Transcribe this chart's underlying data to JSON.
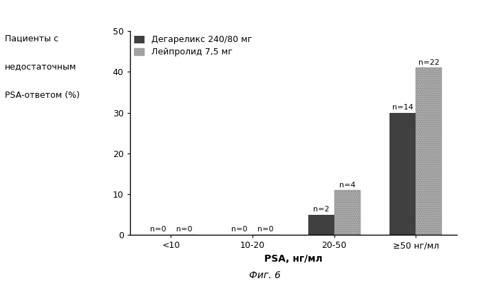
{
  "categories": [
    "<10",
    "10-20",
    "20-50",
    "≥50 нг/мл"
  ],
  "degarelix_values": [
    0,
    0,
    5,
    30
  ],
  "leuprolide_values": [
    0,
    0,
    11,
    41
  ],
  "degarelix_labels": [
    "n=0",
    "n=0",
    "n=2",
    "n=14"
  ],
  "leuprolide_labels": [
    "n=0",
    "n=0",
    "n=4",
    "n=22"
  ],
  "degarelix_color": "#404040",
  "leuprolide_color": "#b0b0b0",
  "ylabel_line1": "Пациенты с",
  "ylabel_line2": "недостаточным",
  "ylabel_line3": "PSA-ответом (%)",
  "xlabel": "PSA, нг/мл",
  "caption": "Фиг. 6",
  "legend_degarelix": "Дегареликс 240/80 мг",
  "legend_leuprolide": "Лейпролид 7,5 мг",
  "ylim": [
    0,
    50
  ],
  "yticks": [
    0,
    10,
    20,
    30,
    40,
    50
  ],
  "background_color": "#ffffff",
  "bar_width": 0.32,
  "label_fontsize": 8,
  "tick_fontsize": 9,
  "axis_label_fontsize": 10
}
